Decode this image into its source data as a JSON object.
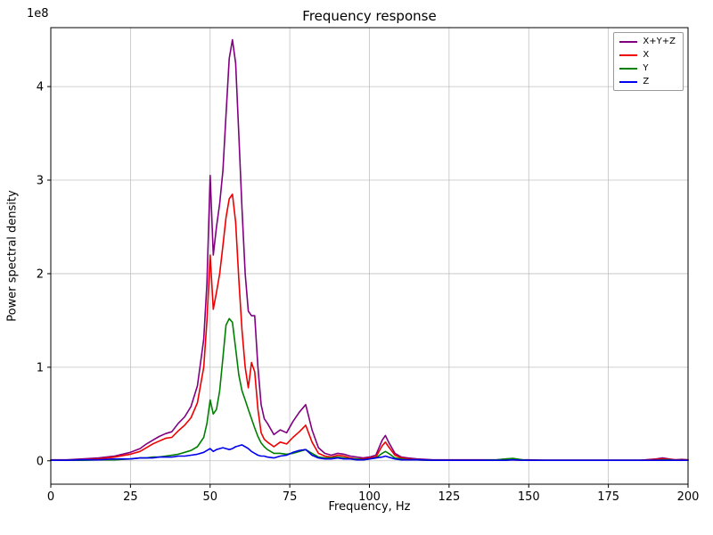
{
  "chart_data": {
    "type": "line",
    "title": "Frequency response",
    "xlabel": "Frequency, Hz",
    "ylabel": "Power spectral density",
    "y_offset_label": "1e8",
    "y_unit_multiplier": 100000000,
    "xlim": [
      0,
      200
    ],
    "ylim": [
      -0.25,
      4.63
    ],
    "xticks": [
      0,
      25,
      50,
      75,
      100,
      125,
      150,
      175,
      200
    ],
    "yticks": [
      0,
      1,
      2,
      3,
      4
    ],
    "grid": true,
    "grid_color": "#c0c0c0",
    "legend_position": "upper right",
    "x": [
      0,
      5,
      10,
      15,
      20,
      25,
      28,
      30,
      32,
      34,
      36,
      38,
      40,
      42,
      44,
      46,
      48,
      49,
      50,
      51,
      52,
      53,
      54,
      55,
      56,
      57,
      58,
      59,
      60,
      61,
      62,
      63,
      64,
      65,
      66,
      67,
      68,
      70,
      72,
      74,
      76,
      78,
      80,
      82,
      84,
      86,
      88,
      90,
      92,
      94,
      96,
      98,
      100,
      102,
      104,
      105,
      106,
      108,
      110,
      112,
      115,
      120,
      125,
      130,
      135,
      140,
      143,
      145,
      148,
      150,
      155,
      160,
      165,
      170,
      175,
      180,
      185,
      190,
      192,
      194,
      196,
      198,
      200
    ],
    "series": [
      {
        "name": "X+Y+Z",
        "color": "#800080",
        "values": [
          0.01,
          0.01,
          0.02,
          0.03,
          0.05,
          0.09,
          0.13,
          0.18,
          0.22,
          0.26,
          0.29,
          0.31,
          0.4,
          0.47,
          0.58,
          0.8,
          1.3,
          1.9,
          3.05,
          2.2,
          2.5,
          2.75,
          3.1,
          3.7,
          4.3,
          4.5,
          4.25,
          3.5,
          2.7,
          2.0,
          1.6,
          1.55,
          1.55,
          1.0,
          0.6,
          0.45,
          0.4,
          0.28,
          0.33,
          0.3,
          0.42,
          0.52,
          0.6,
          0.33,
          0.14,
          0.08,
          0.06,
          0.08,
          0.07,
          0.05,
          0.04,
          0.03,
          0.04,
          0.06,
          0.22,
          0.27,
          0.2,
          0.08,
          0.04,
          0.03,
          0.02,
          0.01,
          0.01,
          0.01,
          0.01,
          0.01,
          0.02,
          0.02,
          0.01,
          0.01,
          0.005,
          0.005,
          0.005,
          0.005,
          0.005,
          0.005,
          0.005,
          0.02,
          0.03,
          0.02,
          0.01,
          0.015,
          0.01
        ]
      },
      {
        "name": "X",
        "color": "#ee0000",
        "values": [
          0.005,
          0.005,
          0.01,
          0.02,
          0.04,
          0.07,
          0.1,
          0.14,
          0.18,
          0.21,
          0.24,
          0.25,
          0.32,
          0.38,
          0.46,
          0.62,
          1.0,
          1.5,
          2.2,
          1.62,
          1.8,
          2.0,
          2.3,
          2.6,
          2.8,
          2.85,
          2.55,
          1.95,
          1.4,
          1.0,
          0.78,
          1.05,
          0.95,
          0.55,
          0.3,
          0.23,
          0.2,
          0.15,
          0.2,
          0.18,
          0.25,
          0.31,
          0.38,
          0.2,
          0.08,
          0.05,
          0.04,
          0.06,
          0.05,
          0.03,
          0.02,
          0.02,
          0.03,
          0.04,
          0.16,
          0.2,
          0.15,
          0.06,
          0.03,
          0.02,
          0.01,
          0.005,
          0.005,
          0.005,
          0.005,
          0.005,
          0.01,
          0.01,
          0.005,
          0.005,
          0.005,
          0.005,
          0.005,
          0.005,
          0.005,
          0.005,
          0.005,
          0.015,
          0.02,
          0.015,
          0.01,
          0.01,
          0.01
        ]
      },
      {
        "name": "Y",
        "color": "#008000",
        "values": [
          0.005,
          0.005,
          0.005,
          0.01,
          0.01,
          0.02,
          0.03,
          0.03,
          0.04,
          0.04,
          0.05,
          0.06,
          0.07,
          0.09,
          0.11,
          0.15,
          0.25,
          0.4,
          0.65,
          0.5,
          0.55,
          0.75,
          1.1,
          1.45,
          1.52,
          1.48,
          1.2,
          0.92,
          0.75,
          0.65,
          0.55,
          0.45,
          0.35,
          0.26,
          0.19,
          0.15,
          0.12,
          0.08,
          0.08,
          0.07,
          0.08,
          0.1,
          0.12,
          0.08,
          0.04,
          0.03,
          0.03,
          0.04,
          0.03,
          0.02,
          0.02,
          0.01,
          0.02,
          0.03,
          0.08,
          0.1,
          0.08,
          0.03,
          0.02,
          0.01,
          0.01,
          0.005,
          0.005,
          0.005,
          0.005,
          0.01,
          0.02,
          0.025,
          0.01,
          0.005,
          0.005,
          0.005,
          0.005,
          0.005,
          0.005,
          0.005,
          0.005,
          0.005,
          0.01,
          0.01,
          0.005,
          0.005,
          0.005
        ]
      },
      {
        "name": "Z",
        "color": "#0000ee",
        "values": [
          0.005,
          0.005,
          0.01,
          0.01,
          0.02,
          0.02,
          0.03,
          0.03,
          0.03,
          0.04,
          0.04,
          0.04,
          0.05,
          0.05,
          0.06,
          0.07,
          0.09,
          0.11,
          0.13,
          0.1,
          0.12,
          0.13,
          0.14,
          0.13,
          0.12,
          0.13,
          0.15,
          0.16,
          0.17,
          0.15,
          0.13,
          0.1,
          0.08,
          0.06,
          0.05,
          0.05,
          0.04,
          0.03,
          0.05,
          0.06,
          0.09,
          0.11,
          0.12,
          0.06,
          0.03,
          0.02,
          0.02,
          0.03,
          0.02,
          0.02,
          0.01,
          0.01,
          0.02,
          0.03,
          0.04,
          0.05,
          0.04,
          0.02,
          0.01,
          0.01,
          0.01,
          0.005,
          0.005,
          0.005,
          0.005,
          0.005,
          0.005,
          0.01,
          0.005,
          0.005,
          0.005,
          0.005,
          0.005,
          0.005,
          0.005,
          0.005,
          0.005,
          0.005,
          0.005,
          0.005,
          0.005,
          0.005,
          0.005
        ]
      }
    ]
  }
}
